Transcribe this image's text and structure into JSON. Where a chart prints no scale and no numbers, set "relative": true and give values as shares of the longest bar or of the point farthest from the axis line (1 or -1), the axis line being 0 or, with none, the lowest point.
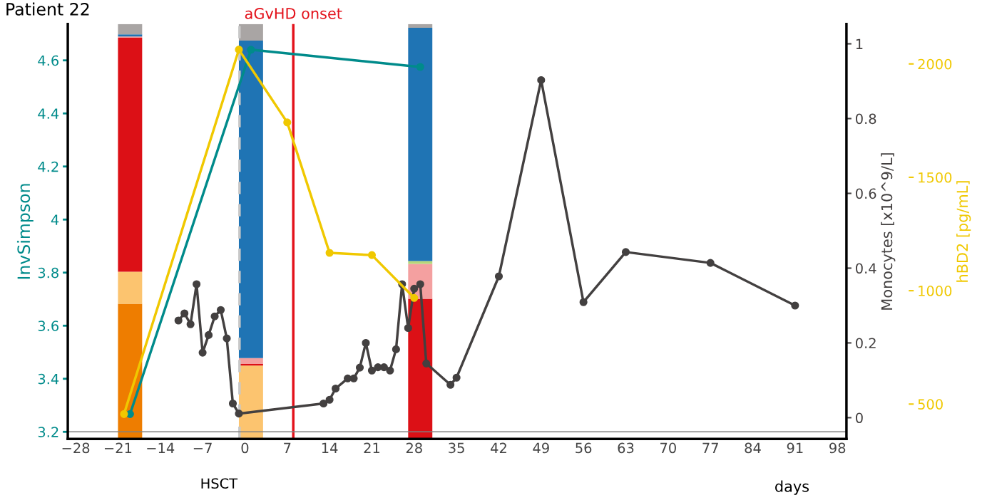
{
  "chart_data": [
    {
      "type": "bar",
      "relative": true,
      "stacked": true,
      "xlim": [
        -29.3,
        99.5
      ],
      "series": [
        {
          "color": "#ee7d00",
          "x": [
            -19,
            1,
            29
          ],
          "values": [
            0.326,
            0,
            0
          ]
        },
        {
          "color": "#fcc46f",
          "x": [
            -19,
            1,
            29
          ],
          "values": [
            0.077,
            0.177,
            0
          ]
        },
        {
          "color": "#dc1016",
          "x": [
            -19,
            1,
            29
          ],
          "values": [
            0.564,
            0.004,
            0.338
          ]
        },
        {
          "color": "#f4a0a0",
          "x": [
            -19,
            1,
            29
          ],
          "values": [
            0.003,
            0.014,
            0.084
          ]
        },
        {
          "color": "#b6d77a",
          "x": [
            -19,
            1,
            29
          ],
          "values": [
            0,
            0,
            0.007
          ]
        },
        {
          "color": "#1f74b4",
          "x": [
            -19,
            1,
            29
          ],
          "values": [
            0.005,
            0.765,
            0.562
          ]
        },
        {
          "color": "#a9a5a4",
          "x": [
            -19,
            1,
            29
          ],
          "values": [
            0.025,
            0.04,
            0.009
          ]
        }
      ]
    },
    {
      "type": "line",
      "title": "Patient 22",
      "xlabel": "days",
      "ylabel": "InvSimpson",
      "y2label": "Monocytes [x10^9/L]",
      "y3label": "hBD2 [pg/mL]",
      "xlim": [
        -29.3,
        99.5
      ],
      "xticks": [
        {
          "value": -28,
          "label": "−28"
        },
        {
          "value": -21,
          "label": "−21"
        },
        {
          "value": -14,
          "label": "−14"
        },
        {
          "value": -7,
          "label": "−7"
        },
        0,
        7,
        14,
        21,
        28,
        35,
        42,
        49,
        56,
        63,
        70,
        77,
        84,
        91,
        98
      ],
      "ylim": [
        3.173,
        4.737
      ],
      "yticks": [
        3.2,
        3.4,
        3.6,
        3.8,
        {
          "value": 4,
          "label": "4"
        },
        4.2,
        4.4,
        4.6
      ],
      "y2lim": [
        -0.057,
        1.053
      ],
      "y2ticks": [
        {
          "value": 0,
          "label": "0"
        },
        0.2,
        0.4,
        0.6,
        0.8,
        {
          "value": 1,
          "label": "1"
        }
      ],
      "y3lim": [
        346,
        2176
      ],
      "y3ticks": [
        500,
        1000,
        1500,
        2000
      ],
      "marker": "circle",
      "annotations": [
        "HSCT"
      ],
      "ref_lines": [
        {
          "axis": "x",
          "value": 8,
          "label": "aGvHD onset",
          "color": "#e3121b",
          "line_style": "solid"
        },
        {
          "axis": "x",
          "value": -0.9,
          "color": "#c8c8c8",
          "line_style": "dashed"
        },
        {
          "axis": "y",
          "value": 3.2,
          "color": "#808080",
          "line_style": "solid"
        }
      ],
      "series": [
        {
          "axis": "y3",
          "color": "#f0c800",
          "x": [
            -20,
            -1,
            7,
            14,
            21,
            28
          ],
          "values": [
            456,
            2063,
            1742,
            1167,
            1157,
            968
          ]
        },
        {
          "color": "#008b8b",
          "x": [
            -19,
            1,
            29
          ],
          "values": [
            3.267,
            4.64,
            4.575
          ]
        },
        {
          "axis": "y2",
          "color": "#434040",
          "x": [
            -11,
            -10,
            -9,
            -8,
            -7,
            -6,
            -5,
            -4,
            -3,
            -2,
            -1,
            13,
            14,
            15,
            17,
            18,
            19,
            20,
            21,
            22,
            23,
            24,
            25,
            26,
            27,
            28,
            29,
            30,
            34,
            35,
            42,
            49,
            56,
            63,
            77,
            91
          ],
          "values": [
            0.26,
            0.279,
            0.25,
            0.357,
            0.174,
            0.221,
            0.271,
            0.288,
            0.212,
            0.038,
            0.011,
            0.038,
            0.048,
            0.078,
            0.105,
            0.105,
            0.134,
            0.2,
            0.126,
            0.135,
            0.135,
            0.126,
            0.183,
            0.357,
            0.24,
            0.345,
            0.357,
            0.145,
            0.088,
            0.107,
            0.378,
            0.903,
            0.309,
            0.443,
            0.414,
            0.3
          ]
        }
      ]
    }
  ]
}
